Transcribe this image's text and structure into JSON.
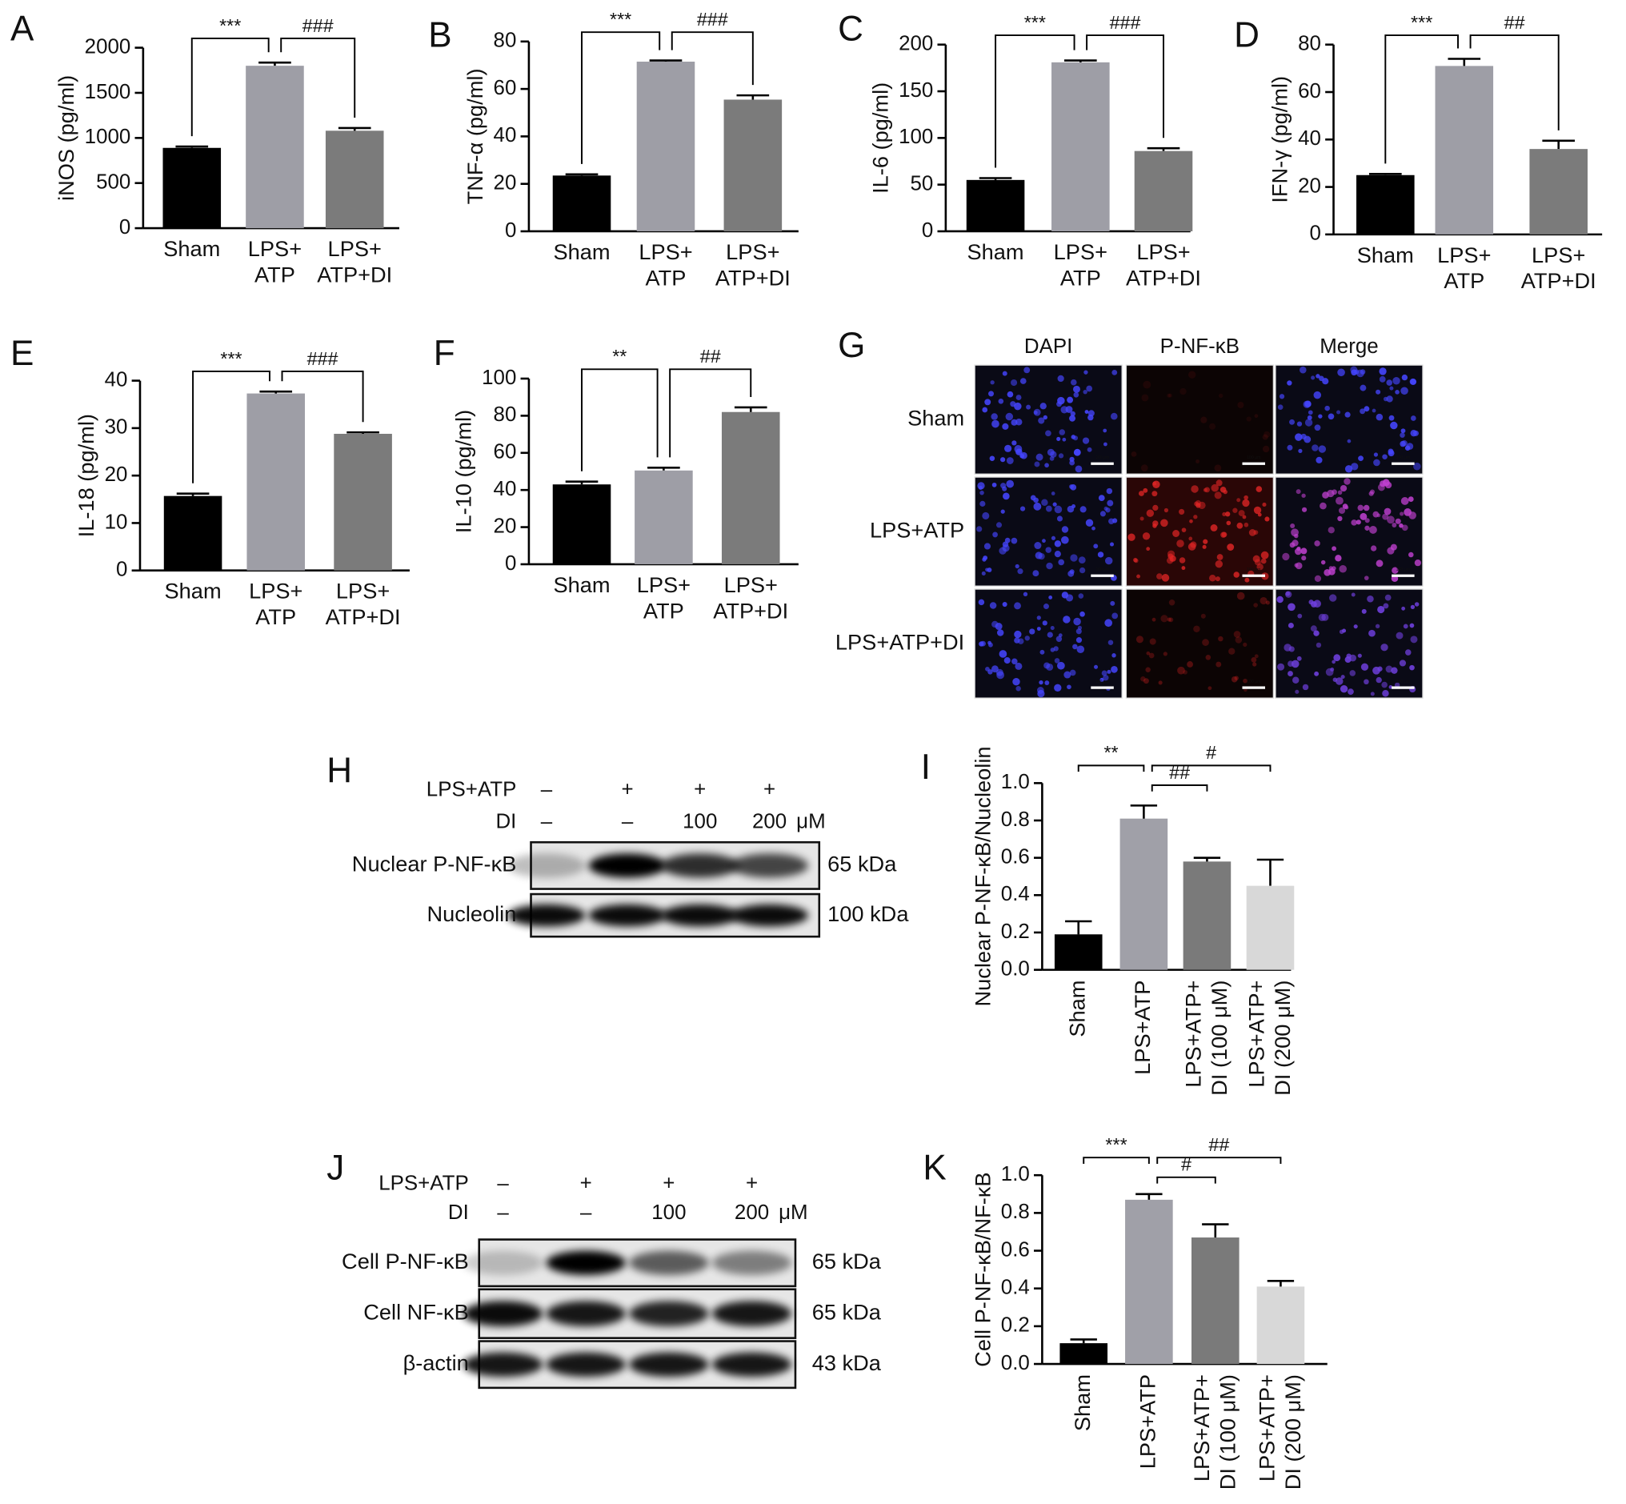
{
  "chart_data": [
    {
      "type": "bar",
      "panel": "A",
      "ylabel": "iNOS (pg/ml)",
      "categories": [
        "Sham",
        "LPS+\nATP",
        "LPS+\nATP+DI"
      ],
      "values": [
        890,
        1800,
        1080
      ],
      "errors": [
        15,
        35,
        30
      ],
      "colors": [
        "#000000",
        "#9e9ea6",
        "#7b7b7b"
      ],
      "ylim": [
        0,
        2000
      ],
      "yticks": [
        0,
        500,
        1000,
        1500,
        2000
      ],
      "annotations": [
        "***",
        "###"
      ]
    },
    {
      "type": "bar",
      "panel": "B",
      "ylabel": "TNF-α (pg/ml)",
      "categories": [
        "Sham",
        "LPS+\nATP",
        "LPS+\nATP+DI"
      ],
      "values": [
        23.5,
        71.5,
        55.5
      ],
      "errors": [
        0.5,
        0.5,
        1.8
      ],
      "colors": [
        "#000000",
        "#9e9ea6",
        "#7b7b7b"
      ],
      "ylim": [
        0,
        80
      ],
      "yticks": [
        0,
        20,
        40,
        60,
        80
      ],
      "annotations": [
        "***",
        "###"
      ]
    },
    {
      "type": "bar",
      "panel": "C",
      "ylabel": "IL-6 (pg/ml)",
      "categories": [
        "Sham",
        "LPS+\nATP",
        "LPS+\nATP+DI"
      ],
      "values": [
        55,
        181,
        86
      ],
      "errors": [
        2,
        2,
        3
      ],
      "colors": [
        "#000000",
        "#9e9ea6",
        "#7b7b7b"
      ],
      "ylim": [
        0,
        200
      ],
      "yticks": [
        0,
        50,
        100,
        150,
        200
      ],
      "annotations": [
        "***",
        "###"
      ]
    },
    {
      "type": "bar",
      "panel": "D",
      "ylabel": "IFN-γ (pg/ml)",
      "categories": [
        "Sham",
        "LPS+\nATP",
        "LPS+\nATP+DI"
      ],
      "values": [
        25,
        71,
        36
      ],
      "errors": [
        0.5,
        3,
        3.5
      ],
      "colors": [
        "#000000",
        "#9e9ea6",
        "#7b7b7b"
      ],
      "ylim": [
        0,
        80
      ],
      "yticks": [
        0,
        20,
        40,
        60,
        80
      ],
      "annotations": [
        "***",
        "##"
      ]
    },
    {
      "type": "bar",
      "panel": "E",
      "ylabel": "IL-18 (pg/ml)",
      "categories": [
        "Sham",
        "LPS+\nATP",
        "LPS+\nATP+DI"
      ],
      "values": [
        15.7,
        37.3,
        28.8
      ],
      "errors": [
        0.5,
        0.4,
        0.3
      ],
      "colors": [
        "#000000",
        "#9e9ea6",
        "#7b7b7b"
      ],
      "ylim": [
        0,
        40
      ],
      "yticks": [
        0,
        10,
        20,
        30,
        40
      ],
      "annotations": [
        "***",
        "###"
      ]
    },
    {
      "type": "bar",
      "panel": "F",
      "ylabel": "IL-10 (pg/ml)",
      "categories": [
        "Sham",
        "LPS+\nATP",
        "LPS+\nATP+DI"
      ],
      "values": [
        43,
        50.5,
        82
      ],
      "errors": [
        1.5,
        1.5,
        2.5
      ],
      "colors": [
        "#000000",
        "#9e9ea6",
        "#7b7b7b"
      ],
      "ylim": [
        0,
        100
      ],
      "yticks": [
        0,
        20,
        40,
        60,
        80,
        100
      ],
      "annotations": [
        "**",
        "##"
      ]
    },
    {
      "type": "bar",
      "panel": "I",
      "ylabel": "Nuclear P-NF-κB/Nucleolin",
      "categories": [
        "Sham",
        "LPS+ATP",
        "LPS+ATP+\nDI (100 μM)",
        "LPS+ATP+\nDI (200 μM)"
      ],
      "values": [
        0.19,
        0.81,
        0.58,
        0.45
      ],
      "errors": [
        0.07,
        0.07,
        0.02,
        0.14
      ],
      "colors": [
        "#000000",
        "#a0a0a8",
        "#7a7a7a",
        "#d8d8d8"
      ],
      "ylim": [
        0,
        1
      ],
      "yticks": [
        {
          "value": 0,
          "label": "0.0"
        },
        0.2,
        0.4,
        0.6,
        0.8,
        {
          "value": 1,
          "label": "1.0"
        }
      ],
      "annotations": [
        "**",
        "##",
        "#"
      ]
    },
    {
      "type": "bar",
      "panel": "K",
      "ylabel": "Cell P-NF-κB/NF-κB",
      "categories": [
        "Sham",
        "LPS+ATP",
        "LPS+ATP+\nDI (100 μM)",
        "LPS+ATP+\nDI (200 μM)"
      ],
      "values": [
        0.11,
        0.87,
        0.67,
        0.41
      ],
      "errors": [
        0.02,
        0.03,
        0.07,
        0.03
      ],
      "colors": [
        "#000000",
        "#a0a0a8",
        "#7a7a7a",
        "#d8d8d8"
      ],
      "ylim": [
        0,
        1
      ],
      "yticks": [
        {
          "value": 0,
          "label": "0.0"
        },
        0.2,
        0.4,
        0.6,
        0.8,
        {
          "value": 1,
          "label": "1.0"
        }
      ],
      "annotations": [
        "***",
        "#",
        "##"
      ]
    }
  ],
  "panel_g": {
    "panel": "G",
    "columns": [
      "DAPI",
      "P-NF-κB",
      "Merge"
    ],
    "rows": [
      "Sham",
      "LPS+ATP",
      "LPS+ATP+DI"
    ],
    "scale_bar": "100 μm"
  },
  "panel_h": {
    "panel": "H",
    "conditions": [
      {
        "label": "LPS+ATP",
        "lanes": [
          "–",
          "+",
          "+",
          "+"
        ]
      },
      {
        "label": "DI",
        "lanes": [
          "–",
          "–",
          "100",
          "200"
        ],
        "unit": "μM"
      }
    ],
    "bands": [
      {
        "label": "Nuclear P-NF-κB",
        "size": "65 kDa"
      },
      {
        "label": "Nucleolin",
        "size": "100 kDa"
      }
    ]
  },
  "panel_j": {
    "panel": "J",
    "conditions": [
      {
        "label": "LPS+ATP",
        "lanes": [
          "–",
          "+",
          "+",
          "+"
        ]
      },
      {
        "label": "DI",
        "lanes": [
          "–",
          "–",
          "100",
          "200"
        ],
        "unit": "μM"
      }
    ],
    "bands": [
      {
        "label": "Cell P-NF-κB",
        "size": "65  kDa"
      },
      {
        "label": "Cell NF-κB",
        "size": "65  kDa"
      },
      {
        "label": "β-actin",
        "size": "43 kDa"
      }
    ]
  }
}
